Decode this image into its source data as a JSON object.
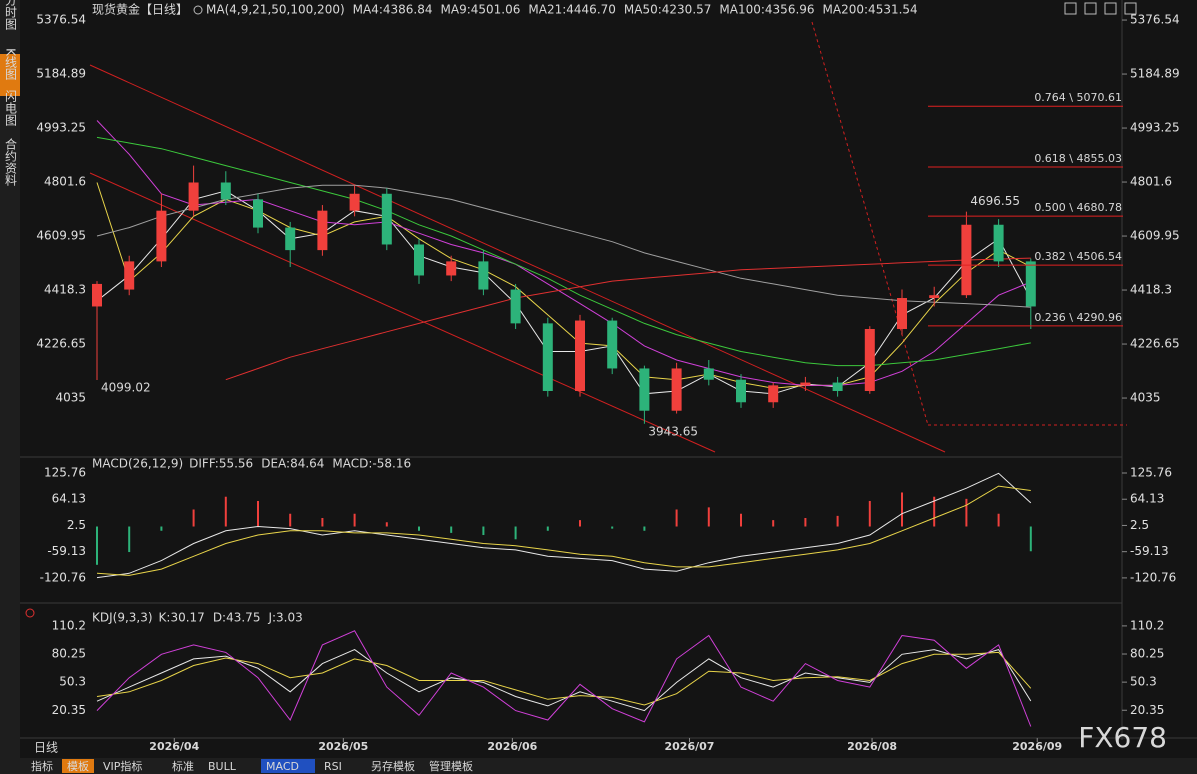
{
  "sidebar": [
    "分时图",
    "K线图",
    "闪电图",
    "合约资料"
  ],
  "toolbar": [
    "指标",
    "模板",
    "VIP指标",
    "标准",
    "BULL",
    "MACD",
    "RSI",
    "另存模板",
    "管理模板"
  ],
  "period": "日线",
  "watermark": "FX678",
  "chart_data": [
    {
      "type": "candlestick",
      "title": "现货黄金",
      "title_period": "【日线】",
      "title_legend": "MA(4,9,21,50,100,200)",
      "open": [
        4360,
        4420,
        4520,
        4700,
        4800,
        4740,
        4640,
        4560,
        4700,
        4760,
        4580,
        4470,
        4520,
        4420,
        4300,
        4060,
        4310,
        4140,
        3990,
        4140,
        4100,
        4020,
        4080,
        4090,
        4060,
        4280,
        4390,
        4400,
        4650,
        4520
      ],
      "high": [
        4450,
        4540,
        4760,
        4860,
        4840,
        4760,
        4660,
        4720,
        4790,
        4780,
        4600,
        4540,
        4560,
        4440,
        4320,
        4330,
        4320,
        4150,
        4160,
        4170,
        4120,
        4090,
        4110,
        4110,
        4290,
        4420,
        4430,
        4696.55,
        4670,
        4530
      ],
      "low": [
        4099.02,
        4400,
        4500,
        4680,
        4720,
        4620,
        4500,
        4540,
        4680,
        4560,
        4440,
        4450,
        4400,
        4280,
        4040,
        4040,
        4120,
        3943.65,
        3980,
        4080,
        4000,
        4000,
        4060,
        4040,
        4050,
        4260,
        4360,
        4390,
        4500,
        4280
      ],
      "close": [
        4440,
        4520,
        4700,
        4800,
        4740,
        4640,
        4560,
        4700,
        4760,
        4580,
        4470,
        4520,
        4420,
        4300,
        4060,
        4310,
        4140,
        3990,
        4140,
        4100,
        4020,
        4080,
        4090,
        4060,
        4280,
        4390,
        4400,
        4650,
        4520,
        4360
      ],
      "up_color": "#f0403c",
      "down_color": "#2db37a",
      "series": [
        {
          "label": "MA4:4386.84",
          "color": "#e8e8e8",
          "values": [
            4380,
            4470,
            4600,
            4740,
            4770,
            4700,
            4600,
            4620,
            4700,
            4680,
            4540,
            4500,
            4480,
            4370,
            4200,
            4200,
            4220,
            4050,
            4060,
            4120,
            4060,
            4050,
            4085,
            4075,
            4160,
            4330,
            4390,
            4520,
            4600,
            4386.84
          ]
        },
        {
          "label": "MA9:4501.06",
          "color": "#e8d44a",
          "values": [
            4800,
            4450,
            4550,
            4680,
            4740,
            4700,
            4640,
            4610,
            4660,
            4680,
            4600,
            4530,
            4490,
            4430,
            4330,
            4230,
            4220,
            4110,
            4100,
            4120,
            4090,
            4070,
            4080,
            4080,
            4110,
            4230,
            4370,
            4480,
            4560,
            4501.06
          ]
        },
        {
          "label": "MA21:4446.70",
          "color": "#d040d8",
          "values": [
            5020,
            4900,
            4760,
            4720,
            4730,
            4740,
            4700,
            4660,
            4650,
            4660,
            4620,
            4580,
            4550,
            4510,
            4440,
            4370,
            4300,
            4220,
            4170,
            4140,
            4110,
            4090,
            4080,
            4080,
            4090,
            4130,
            4200,
            4300,
            4400,
            4446.7
          ]
        },
        {
          "label": "MA50:4230.57",
          "color": "#3cc83c",
          "values": [
            4960,
            4940,
            4920,
            4890,
            4860,
            4830,
            4800,
            4770,
            4740,
            4700,
            4650,
            4610,
            4560,
            4510,
            4460,
            4400,
            4350,
            4300,
            4260,
            4230,
            4200,
            4180,
            4160,
            4150,
            4150,
            4160,
            4170,
            4190,
            4210,
            4230.57
          ]
        },
        {
          "label": "MA100:4356.96",
          "color": "#a0a0a0",
          "values": [
            4610,
            4640,
            4680,
            4710,
            4740,
            4760,
            4780,
            4790,
            4790,
            4780,
            4760,
            4740,
            4710,
            4680,
            4650,
            4620,
            4590,
            4550,
            4520,
            4490,
            4460,
            4440,
            4420,
            4400,
            4390,
            4380,
            4375,
            4370,
            4365,
            4356.96
          ]
        },
        {
          "label": "MA200:4531.54",
          "color": "#e03030",
          "values": [
            null,
            null,
            null,
            null,
            4100,
            4140,
            4180,
            4210,
            4240,
            4270,
            4300,
            4330,
            4360,
            4390,
            4410,
            4430,
            4450,
            4460,
            4470,
            4480,
            4490,
            4495,
            4500,
            4505,
            4510,
            4515,
            4520,
            4525,
            4528,
            4531.54
          ]
        }
      ],
      "ylim": [
        3830,
        5420
      ],
      "yticks": [
        4035.0,
        4226.65,
        4418.3,
        4609.95,
        4801.6,
        4993.25,
        5184.89,
        5376.54
      ],
      "xticks": [
        {
          "value": 2.4,
          "label": "2026/04"
        },
        {
          "value": 7.65,
          "label": "2026/05"
        },
        {
          "value": 12.9,
          "label": "2026/06"
        },
        {
          "value": 18.4,
          "label": "2026/07"
        },
        {
          "value": 24.07,
          "label": "2026/08"
        },
        {
          "value": 29.2,
          "label": "2026/09"
        }
      ],
      "annotations": [
        {
          "index": 0,
          "value": 4099.02
        },
        {
          "index": 17,
          "value": 3943.65
        },
        {
          "index": 27,
          "value": 4696.55
        }
      ],
      "fib": [
        {
          "label": "0.764 \\ 5070.61",
          "value": 5070.61
        },
        {
          "label": "0.618 \\ 4855.03",
          "value": 4855.03
        },
        {
          "label": "0.500 \\ 4680.78",
          "value": 4680.78
        },
        {
          "label": "0.382 \\ 4506.54",
          "value": 4506.54
        },
        {
          "label": "0.236 \\ 4290.96",
          "value": 4290.96
        }
      ]
    },
    {
      "type": "macd",
      "title": "MACD(26,12,9)",
      "legend": [
        {
          "text": "DIFF:55.56",
          "color": "#e8e8e8"
        },
        {
          "text": "DEA:84.64",
          "color": "#e8d44a"
        },
        {
          "text": "MACD:-58.16",
          "color": "#d040d8"
        }
      ],
      "hist": [
        -90,
        -60,
        -10,
        40,
        70,
        60,
        30,
        20,
        30,
        10,
        -10,
        -15,
        -20,
        -30,
        -10,
        15,
        -5,
        -10,
        40,
        45,
        30,
        15,
        20,
        25,
        60,
        80,
        70,
        65,
        30,
        -58.16
      ],
      "series": [
        {
          "color": "#e8e8e8",
          "values": [
            -120,
            -110,
            -80,
            -40,
            -10,
            0,
            -5,
            -20,
            -10,
            -20,
            -30,
            -40,
            -50,
            -55,
            -70,
            -75,
            -80,
            -100,
            -105,
            -85,
            -70,
            -60,
            -50,
            -40,
            -20,
            30,
            60,
            90,
            125,
            55.56
          ]
        },
        {
          "color": "#e8d44a",
          "values": [
            -110,
            -115,
            -100,
            -70,
            -40,
            -20,
            -10,
            -10,
            -15,
            -15,
            -20,
            -30,
            -40,
            -45,
            -55,
            -65,
            -70,
            -85,
            -95,
            -95,
            -85,
            -75,
            -65,
            -55,
            -40,
            -10,
            20,
            50,
            95,
            84.64
          ]
        }
      ],
      "up_color": "#f0403c",
      "down_color": "#2db37a",
      "ylim": [
        -168,
        161
      ],
      "yticks": [
        -120.76,
        -59.13,
        2.5,
        64.13,
        125.76
      ]
    },
    {
      "type": "kdj",
      "title": "KDJ(9,3,3)",
      "legend": [
        {
          "text": "K:30.17",
          "color": "#e8e8e8"
        },
        {
          "text": "D:43.75",
          "color": "#e8d44a"
        },
        {
          "text": "J:3.03",
          "color": "#d040d8"
        }
      ],
      "series": [
        {
          "color": "#e8e8e8",
          "values": [
            30,
            45,
            60,
            75,
            78,
            65,
            40,
            70,
            85,
            60,
            40,
            55,
            50,
            35,
            25,
            40,
            30,
            20,
            50,
            75,
            55,
            45,
            60,
            55,
            50,
            80,
            85,
            75,
            85,
            30.17
          ]
        },
        {
          "color": "#e8d44a",
          "values": [
            35,
            40,
            52,
            68,
            76,
            70,
            55,
            60,
            75,
            68,
            52,
            52,
            52,
            42,
            32,
            36,
            34,
            26,
            38,
            62,
            60,
            52,
            55,
            56,
            52,
            70,
            80,
            80,
            82,
            43.75
          ]
        },
        {
          "color": "#d040d8",
          "values": [
            20,
            55,
            80,
            90,
            82,
            55,
            10,
            90,
            105,
            45,
            15,
            60,
            45,
            20,
            10,
            48,
            22,
            8,
            75,
            100,
            45,
            30,
            70,
            52,
            45,
            100,
            95,
            65,
            90,
            3.03
          ]
        }
      ],
      "ylim": [
        -6,
        125
      ],
      "yticks": [
        20.35,
        50.3,
        80.25,
        110.2
      ]
    }
  ]
}
